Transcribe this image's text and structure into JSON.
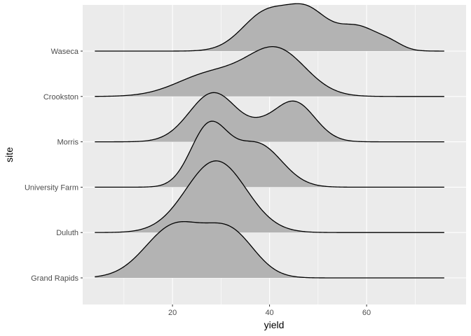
{
  "chart_data": {
    "type": "ridgeline",
    "xlabel": "yield",
    "ylabel": "site",
    "xlim": [
      1.5,
      80.5
    ],
    "x_ticks": [
      20,
      40,
      60
    ],
    "x_tick_labels": [
      "20",
      "40",
      "60"
    ],
    "x_minor_ticks": [
      10,
      30,
      50,
      70
    ],
    "density_x_range": [
      4,
      76
    ],
    "grid": true,
    "legend": "none",
    "colors": {
      "panel": "#ebebeb",
      "grid": "#ffffff",
      "fill": "#b3b3b3",
      "line": "#000000"
    },
    "categories": [
      "Grand Rapids",
      "Duluth",
      "University Farm",
      "Morris",
      "Crookston",
      "Waseca"
    ],
    "series": [
      {
        "category": "Grand Rapids",
        "peaks": [
          {
            "center": 20.5,
            "height": 1.27,
            "width": 6.0
          },
          {
            "center": 32.0,
            "height": 1.05,
            "width": 5.0
          }
        ]
      },
      {
        "category": "Duluth",
        "peaks": [
          {
            "center": 29.0,
            "height": 1.75,
            "width": 6.2
          }
        ]
      },
      {
        "category": "University Farm",
        "peaks": [
          {
            "center": 27.5,
            "height": 1.45,
            "width": 3.8
          },
          {
            "center": 37.5,
            "height": 1.05,
            "width": 5.0
          }
        ]
      },
      {
        "category": "Morris",
        "peaks": [
          {
            "center": 28.5,
            "height": 1.2,
            "width": 5.0
          },
          {
            "center": 45.0,
            "height": 0.98,
            "width": 4.3
          },
          {
            "center": 38.0,
            "height": 0.15,
            "width": 3.0
          }
        ]
      },
      {
        "category": "Crookston",
        "peaks": [
          {
            "center": 41.5,
            "height": 1.12,
            "width": 6.0
          },
          {
            "center": 28.0,
            "height": 0.55,
            "width": 7.0
          }
        ]
      },
      {
        "category": "Waseca",
        "peaks": [
          {
            "center": 39.5,
            "height": 0.95,
            "width": 5.0
          },
          {
            "center": 48.0,
            "height": 0.83,
            "width": 4.0
          },
          {
            "center": 58.0,
            "height": 0.6,
            "width": 4.5
          },
          {
            "center": 65.0,
            "height": 0.12,
            "width": 2.5
          }
        ]
      }
    ]
  }
}
